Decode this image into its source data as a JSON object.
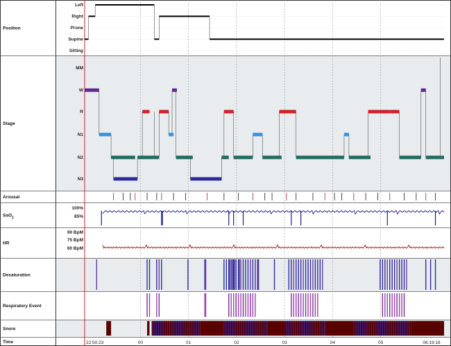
{
  "chart_data": {
    "type": "hypnogram",
    "rows": [
      {
        "key": "position",
        "label": "Position"
      },
      {
        "key": "stage",
        "label": "Stage"
      },
      {
        "key": "arousal",
        "label": "Arousal"
      },
      {
        "key": "sao2",
        "label": "SaO",
        "sub": "2"
      },
      {
        "key": "hr",
        "label": "HR"
      },
      {
        "key": "desat",
        "label": "Desaturation"
      },
      {
        "key": "resp",
        "label": "Respiratory Event"
      },
      {
        "key": "snore",
        "label": "Snore"
      },
      {
        "key": "time",
        "label": "Time"
      }
    ],
    "position_levels": [
      "Left",
      "Right",
      "Prone",
      "Supine",
      "Sitting"
    ],
    "stage_levels": [
      "MM",
      "W",
      "R",
      "N1",
      "N2",
      "N3"
    ],
    "sao2_ticks": [
      "100%",
      "85%"
    ],
    "hr_ticks": [
      "90 BpM",
      "75 BpM",
      "60 BpM"
    ],
    "time_ticks": [
      "22:50:23",
      "00",
      "01",
      "02",
      "03",
      "04",
      "05",
      "06:19:18"
    ],
    "time_range_hours": [
      0,
      7.48
    ],
    "colors": {
      "wake": "#5b2a86",
      "rem": "#d0202a",
      "n1": "#3a8fd8",
      "n2": "#1f6b5c",
      "n3": "#2a2a9e",
      "sao2": "#1c1c8c",
      "hr": "#a01818",
      "desat": "#2b2ba0",
      "resp": "#9a3fb0",
      "snore_dark": "#5a0000",
      "snore_blue": "#2a2ab0",
      "position": "#000000",
      "cursor": "#c0242c"
    },
    "position_segments": [
      {
        "start": 0.0,
        "end": 0.08,
        "level": "Supine"
      },
      {
        "start": 0.08,
        "end": 0.22,
        "level": "Right"
      },
      {
        "start": 0.22,
        "end": 1.45,
        "level": "Left"
      },
      {
        "start": 1.45,
        "end": 1.55,
        "level": "Supine"
      },
      {
        "start": 1.55,
        "end": 2.6,
        "level": "Right"
      },
      {
        "start": 2.6,
        "end": 7.48,
        "level": "Supine"
      }
    ],
    "stage_segments": [
      {
        "start": 0.0,
        "end": 0.3,
        "stage": "W"
      },
      {
        "start": 0.3,
        "end": 0.55,
        "stage": "N1"
      },
      {
        "start": 0.55,
        "end": 0.7,
        "stage": "N2"
      },
      {
        "start": 0.7,
        "end": 1.05,
        "stage": "N2"
      },
      {
        "start": 0.6,
        "end": 1.1,
        "stage": "N3"
      },
      {
        "start": 1.1,
        "end": 1.45,
        "stage": "N2"
      },
      {
        "start": 1.2,
        "end": 1.35,
        "stage": "R"
      },
      {
        "start": 1.45,
        "end": 1.55,
        "stage": "N2"
      },
      {
        "start": 1.55,
        "end": 1.75,
        "stage": "R"
      },
      {
        "start": 1.75,
        "end": 1.85,
        "stage": "N1"
      },
      {
        "start": 1.82,
        "end": 1.92,
        "stage": "W"
      },
      {
        "start": 1.9,
        "end": 2.25,
        "stage": "N2"
      },
      {
        "start": 2.2,
        "end": 2.45,
        "stage": "N3"
      },
      {
        "start": 2.4,
        "end": 2.85,
        "stage": "N3"
      },
      {
        "start": 2.85,
        "end": 3.0,
        "stage": "N2"
      },
      {
        "start": 2.9,
        "end": 3.1,
        "stage": "R"
      },
      {
        "start": 3.1,
        "end": 3.35,
        "stage": "N2"
      },
      {
        "start": 3.35,
        "end": 3.5,
        "stage": "N2"
      },
      {
        "start": 3.5,
        "end": 3.7,
        "stage": "N1"
      },
      {
        "start": 3.7,
        "end": 4.1,
        "stage": "N2"
      },
      {
        "start": 4.05,
        "end": 4.4,
        "stage": "R"
      },
      {
        "start": 4.4,
        "end": 5.4,
        "stage": "N2"
      },
      {
        "start": 5.4,
        "end": 5.5,
        "stage": "N1"
      },
      {
        "start": 5.5,
        "end": 5.95,
        "stage": "N2"
      },
      {
        "start": 5.9,
        "end": 6.35,
        "stage": "R"
      },
      {
        "start": 6.35,
        "end": 6.55,
        "stage": "R"
      },
      {
        "start": 6.55,
        "end": 7.0,
        "stage": "N2"
      },
      {
        "start": 7.0,
        "end": 7.1,
        "stage": "W"
      },
      {
        "start": 7.1,
        "end": 7.48,
        "stage": "N2"
      }
    ],
    "arousal_events": [
      0.6,
      0.8,
      0.95,
      1.05,
      1.3,
      1.5,
      1.6,
      1.85,
      2.1,
      2.55,
      2.9,
      3.2,
      3.5,
      3.75,
      3.9,
      4.2,
      4.4,
      4.75,
      5.0,
      5.2,
      5.35,
      5.6,
      5.85,
      6.1,
      6.35,
      6.65,
      6.9,
      7.1,
      7.3
    ],
    "desat_events": [
      0.25,
      1.3,
      1.35,
      1.5,
      1.55,
      1.6,
      2.15,
      2.5,
      2.52,
      2.9,
      2.95,
      3.0,
      3.02,
      3.05,
      3.08,
      3.1,
      3.12,
      3.15,
      3.2,
      3.22,
      3.25,
      3.3,
      3.35,
      3.4,
      3.45,
      3.5,
      3.55,
      3.6,
      3.62,
      3.95,
      4.25,
      4.3,
      4.35,
      4.4,
      4.45,
      4.5,
      4.55,
      4.6,
      4.65,
      4.7,
      4.75,
      4.8,
      4.85,
      4.9,
      4.95,
      6.15,
      6.2,
      6.25,
      6.3,
      6.35,
      6.4,
      6.45,
      6.5,
      6.55,
      6.6,
      6.65,
      6.7,
      7.1,
      7.2,
      7.3
    ],
    "resp_events": [
      1.3,
      1.35,
      1.5,
      1.55,
      2.5,
      2.52,
      3.0,
      3.05,
      3.1,
      3.15,
      3.2,
      3.25,
      3.3,
      3.35,
      3.4,
      3.45,
      3.5,
      3.55,
      4.3,
      4.35,
      4.4,
      4.45,
      4.5,
      4.55,
      4.6,
      4.65,
      4.7,
      4.75,
      4.8,
      4.85,
      6.2,
      6.25,
      6.3,
      6.35,
      6.4,
      6.45,
      6.5,
      6.55,
      6.6,
      6.65
    ],
    "snore_blocks": [
      {
        "start": 0.45,
        "end": 0.55,
        "tone": "dark"
      },
      {
        "start": 1.3,
        "end": 1.35,
        "tone": "dark"
      },
      {
        "start": 1.4,
        "end": 2.4,
        "tone": "mixed"
      },
      {
        "start": 2.4,
        "end": 2.9,
        "tone": "dark"
      },
      {
        "start": 2.9,
        "end": 3.8,
        "tone": "mixed"
      },
      {
        "start": 3.8,
        "end": 4.2,
        "tone": "dark"
      },
      {
        "start": 4.2,
        "end": 5.0,
        "tone": "mixed"
      },
      {
        "start": 5.0,
        "end": 5.6,
        "tone": "dark"
      },
      {
        "start": 5.6,
        "end": 6.8,
        "tone": "mixed"
      },
      {
        "start": 6.8,
        "end": 7.48,
        "tone": "dark"
      }
    ]
  }
}
